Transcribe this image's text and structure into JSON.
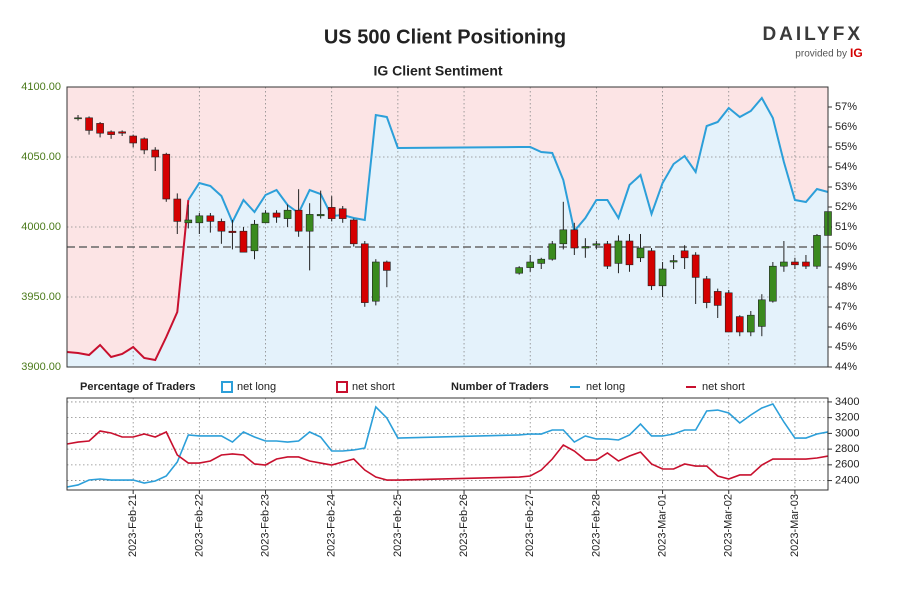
{
  "chart_data": [
    {
      "type": "candlestick",
      "title": "US 500 Client Positioning",
      "subtitle": "IG Client Sentiment",
      "logo": {
        "brand": "DAILYFX",
        "tagline": "provided by",
        "partner": "IG"
      },
      "x": [
        "2023-02-20T04:00",
        "2023-02-20T08:00",
        "2023-02-20T12:00",
        "2023-02-20T16:00",
        "2023-02-20T20:00",
        "2023-02-21T00:00",
        "2023-02-21T04:00",
        "2023-02-21T08:00",
        "2023-02-21T12:00",
        "2023-02-21T16:00",
        "2023-02-21T20:00",
        "2023-02-22T00:00",
        "2023-02-22T04:00",
        "2023-02-22T08:00",
        "2023-02-22T12:00",
        "2023-02-22T16:00",
        "2023-02-22T20:00",
        "2023-02-23T00:00",
        "2023-02-23T04:00",
        "2023-02-23T08:00",
        "2023-02-23T12:00",
        "2023-02-23T16:00",
        "2023-02-23T20:00",
        "2023-02-24T00:00",
        "2023-02-24T04:00",
        "2023-02-24T08:00",
        "2023-02-24T12:00",
        "2023-02-24T16:00",
        "2023-02-24T20:00",
        "2023-02-26T20:00",
        "2023-02-27T00:00",
        "2023-02-27T04:00",
        "2023-02-27T08:00",
        "2023-02-27T12:00",
        "2023-02-27T16:00",
        "2023-02-27T20:00",
        "2023-02-28T00:00",
        "2023-02-28T04:00",
        "2023-02-28T08:00",
        "2023-02-28T12:00",
        "2023-02-28T16:00",
        "2023-02-28T20:00",
        "2023-03-01T00:00",
        "2023-03-01T04:00",
        "2023-03-01T08:00",
        "2023-03-01T12:00",
        "2023-03-01T16:00",
        "2023-03-01T20:00",
        "2023-03-02T00:00",
        "2023-03-02T04:00",
        "2023-03-02T08:00",
        "2023-03-02T12:00",
        "2023-03-02T16:00",
        "2023-03-02T20:00",
        "2023-03-03T00:00",
        "2023-03-03T04:00",
        "2023-03-03T08:00",
        "2023-03-03T12:00"
      ],
      "open": [
        4078,
        4078,
        4074,
        4068,
        4068,
        4065,
        4063,
        4055,
        4052,
        4020,
        4003,
        4003,
        4008,
        4004,
        3997,
        3997,
        3983,
        4003,
        4010,
        4006,
        4012,
        3997,
        4008,
        4014,
        4013,
        4005,
        3988,
        3947,
        3975,
        3967,
        3971,
        3974,
        3977,
        3988,
        3998,
        3985,
        3987,
        3988,
        3974,
        3990,
        3978,
        3983,
        3958,
        3975,
        3983,
        3980,
        3963,
        3954,
        3953,
        3936,
        3925,
        3929,
        3947,
        3972,
        3975,
        3975,
        3972,
        3994
      ],
      "high": [
        4080,
        4079,
        4075,
        4069,
        4069,
        4066,
        4064,
        4057,
        4053,
        4024,
        4016,
        4010,
        4010,
        4006,
        4005,
        4000,
        4005,
        4012,
        4012,
        4016,
        4027,
        4017,
        4026,
        4022,
        4015,
        4006,
        3990,
        3977,
        3976,
        3972,
        3980,
        3978,
        3990,
        4018,
        4003,
        3992,
        3990,
        3990,
        3994,
        3995,
        3995,
        3985,
        3975,
        3980,
        3987,
        3982,
        3965,
        3956,
        3955,
        3937,
        3940,
        3952,
        3975,
        3990,
        3978,
        3980,
        3995,
        4019
      ],
      "low": [
        4076,
        4066,
        4064,
        4063,
        4065,
        4057,
        4052,
        4040,
        4018,
        3995,
        3999,
        3995,
        3996,
        3988,
        3984,
        3982,
        3977,
        4003,
        4003,
        4000,
        3993,
        3969,
        4006,
        4004,
        4003,
        3986,
        3943,
        3944,
        3957,
        3966,
        3968,
        3970,
        3976,
        3984,
        3980,
        3978,
        3984,
        3970,
        3967,
        3968,
        3975,
        3955,
        3950,
        3970,
        3970,
        3945,
        3942,
        3935,
        3925,
        3922,
        3922,
        3922,
        3946,
        3968,
        3970,
        3970,
        3970,
        3990
      ],
      "close": [
        4078,
        4069,
        4067,
        4066,
        4067,
        4060,
        4055,
        4050,
        4020,
        4004,
        4005,
        4008,
        4004,
        3997,
        3996,
        3982,
        4002,
        4010,
        4007,
        4012,
        3997,
        4009,
        4009,
        4006,
        4006,
        3988,
        3946,
        3975,
        3969,
        3971,
        3975,
        3977,
        3988,
        3998,
        3985,
        3986,
        3988,
        3972,
        3990,
        3973,
        3985,
        3958,
        3970,
        3976,
        3978,
        3964,
        3946,
        3944,
        3925,
        3925,
        3937,
        3948,
        3972,
        3975,
        3973,
        3972,
        3994,
        4011
      ],
      "up_color": "#3a8a1e",
      "down_color": "#d40000",
      "xlim": [
        "2023-02-20T00:00",
        "2023-03-03T12:00"
      ],
      "ylim": [
        3900,
        4100
      ],
      "yticks": [
        {
          "value": 3900,
          "label": "3900.00"
        },
        {
          "value": 3950,
          "label": "3950.00"
        },
        {
          "value": 4000,
          "label": "4000.00"
        },
        {
          "value": 4050,
          "label": "4050.00"
        },
        {
          "value": 4100,
          "label": "4100.00"
        }
      ],
      "y2lim": [
        44,
        58
      ],
      "y2ticks": [
        {
          "value": 44,
          "label": "44%"
        },
        {
          "value": 45,
          "label": "45%"
        },
        {
          "value": 46,
          "label": "46%"
        },
        {
          "value": 47,
          "label": "47%"
        },
        {
          "value": 48,
          "label": "48%"
        },
        {
          "value": 49,
          "label": "49%"
        },
        {
          "value": 50,
          "label": "50%"
        },
        {
          "value": 51,
          "label": "51%"
        },
        {
          "value": 52,
          "label": "52%"
        },
        {
          "value": 53,
          "label": "53%"
        },
        {
          "value": 54,
          "label": "54%"
        },
        {
          "value": 55,
          "label": "55%"
        },
        {
          "value": 56,
          "label": "56%"
        },
        {
          "value": 57,
          "label": "57%"
        }
      ],
      "grid": true,
      "sentiment": {
        "legend_title": "Percentage of Traders",
        "axis": "y2",
        "threshold": 50,
        "series": [
          {
            "name": "net long",
            "color": "#2c9fd9",
            "fill": "#e4f2fb"
          },
          {
            "name": "net short",
            "color": "#c8102e",
            "fill": "#fce4e5"
          }
        ],
        "x": [
          "2023-02-20T00:00",
          "2023-02-20T04:00",
          "2023-02-20T08:00",
          "2023-02-20T12:00",
          "2023-02-20T16:00",
          "2023-02-20T20:00",
          "2023-02-21T00:00",
          "2023-02-21T04:00",
          "2023-02-21T08:00",
          "2023-02-21T12:00",
          "2023-02-21T16:00",
          "2023-02-21T20:00",
          "2023-02-22T00:00",
          "2023-02-22T04:00",
          "2023-02-22T08:00",
          "2023-02-22T12:00",
          "2023-02-22T16:00",
          "2023-02-22T20:00",
          "2023-02-23T00:00",
          "2023-02-23T04:00",
          "2023-02-23T08:00",
          "2023-02-23T12:00",
          "2023-02-23T16:00",
          "2023-02-23T20:00",
          "2023-02-24T00:00",
          "2023-02-24T04:00",
          "2023-02-24T08:00",
          "2023-02-24T12:00",
          "2023-02-24T16:00",
          "2023-02-24T20:00",
          "2023-02-25T00:00",
          "2023-02-26T20:00",
          "2023-02-27T00:00",
          "2023-02-27T04:00",
          "2023-02-27T08:00",
          "2023-02-27T12:00",
          "2023-02-27T16:00",
          "2023-02-27T20:00",
          "2023-02-28T00:00",
          "2023-02-28T04:00",
          "2023-02-28T08:00",
          "2023-02-28T12:00",
          "2023-02-28T16:00",
          "2023-02-28T20:00",
          "2023-03-01T00:00",
          "2023-03-01T04:00",
          "2023-03-01T08:00",
          "2023-03-01T12:00",
          "2023-03-01T16:00",
          "2023-03-01T20:00",
          "2023-03-02T00:00",
          "2023-03-02T04:00",
          "2023-03-02T08:00",
          "2023-03-02T12:00",
          "2023-03-02T16:00",
          "2023-03-02T20:00",
          "2023-03-03T00:00",
          "2023-03-03T04:00",
          "2023-03-03T08:00",
          "2023-03-03T12:00"
        ],
        "values": [
          44.75,
          44.7,
          44.6,
          45.1,
          44.5,
          44.65,
          45.0,
          44.45,
          44.35,
          45.5,
          46.75,
          52.35,
          53.2,
          53.05,
          52.55,
          51.25,
          52.35,
          51.75,
          52.6,
          52.85,
          52.1,
          51.7,
          52.85,
          52.65,
          51.55,
          51.6,
          51.45,
          51.35,
          56.6,
          56.5,
          54.95,
          55.0,
          55.0,
          54.75,
          54.7,
          53.35,
          50.8,
          51.45,
          52.35,
          52.35,
          51.45,
          53.1,
          53.6,
          51.65,
          53.2,
          54.15,
          54.55,
          53.75,
          56.05,
          56.25,
          56.95,
          56.5,
          56.8,
          57.45,
          56.45,
          54.25,
          52.35,
          52.25,
          52.9,
          52.75
        ]
      }
    },
    {
      "type": "line",
      "legend_title": "Number of Traders",
      "x": [
        "2023-02-20T00:00",
        "2023-02-20T04:00",
        "2023-02-20T08:00",
        "2023-02-20T12:00",
        "2023-02-20T16:00",
        "2023-02-20T20:00",
        "2023-02-21T00:00",
        "2023-02-21T04:00",
        "2023-02-21T08:00",
        "2023-02-21T12:00",
        "2023-02-21T16:00",
        "2023-02-21T20:00",
        "2023-02-22T00:00",
        "2023-02-22T04:00",
        "2023-02-22T08:00",
        "2023-02-22T12:00",
        "2023-02-22T16:00",
        "2023-02-22T20:00",
        "2023-02-23T00:00",
        "2023-02-23T04:00",
        "2023-02-23T08:00",
        "2023-02-23T12:00",
        "2023-02-23T16:00",
        "2023-02-23T20:00",
        "2023-02-24T00:00",
        "2023-02-24T04:00",
        "2023-02-24T08:00",
        "2023-02-24T12:00",
        "2023-02-24T16:00",
        "2023-02-24T20:00",
        "2023-02-25T00:00",
        "2023-02-26T20:00",
        "2023-02-27T00:00",
        "2023-02-27T04:00",
        "2023-02-27T08:00",
        "2023-02-27T12:00",
        "2023-02-27T16:00",
        "2023-02-27T20:00",
        "2023-02-28T00:00",
        "2023-02-28T04:00",
        "2023-02-28T08:00",
        "2023-02-28T12:00",
        "2023-02-28T16:00",
        "2023-02-28T20:00",
        "2023-03-01T00:00",
        "2023-03-01T04:00",
        "2023-03-01T08:00",
        "2023-03-01T12:00",
        "2023-03-01T16:00",
        "2023-03-01T20:00",
        "2023-03-02T00:00",
        "2023-03-02T04:00",
        "2023-03-02T08:00",
        "2023-03-02T12:00",
        "2023-03-02T16:00",
        "2023-03-02T20:00",
        "2023-03-03T00:00",
        "2023-03-03T04:00",
        "2023-03-03T08:00",
        "2023-03-03T12:00"
      ],
      "series": [
        {
          "name": "net long",
          "color": "#2c9fd9",
          "values": [
            2318,
            2344,
            2407,
            2420,
            2407,
            2407,
            2407,
            2369,
            2394,
            2458,
            2636,
            2980,
            2967,
            2967,
            2967,
            2890,
            3018,
            2954,
            2903,
            2903,
            2890,
            2903,
            3018,
            2954,
            2776,
            2776,
            2789,
            2814,
            3336,
            3196,
            2941,
            2980,
            2992,
            2992,
            3043,
            3043,
            2890,
            2967,
            2929,
            2929,
            2916,
            2980,
            3119,
            2967,
            2967,
            2992,
            3043,
            3043,
            3285,
            3297,
            3259,
            3132,
            3234,
            3323,
            3374,
            3145,
            2941,
            2941,
            2992,
            3018
          ]
        },
        {
          "name": "net short",
          "color": "#c8102e",
          "values": [
            2865,
            2890,
            2903,
            3030,
            3005,
            2954,
            2954,
            2992,
            2954,
            3018,
            2725,
            2623,
            2623,
            2649,
            2725,
            2738,
            2725,
            2611,
            2598,
            2674,
            2700,
            2700,
            2649,
            2623,
            2598,
            2636,
            2674,
            2534,
            2445,
            2407,
            2407,
            2445,
            2458,
            2534,
            2674,
            2852,
            2776,
            2661,
            2661,
            2751,
            2649,
            2712,
            2763,
            2611,
            2547,
            2547,
            2611,
            2585,
            2585,
            2458,
            2420,
            2471,
            2471,
            2598,
            2674,
            2674,
            2674,
            2674,
            2687,
            2712
          ]
        }
      ],
      "xlim": [
        "2023-02-20T00:00",
        "2023-03-03T12:00"
      ],
      "xticks": [
        {
          "value": "2023-02-21T00:00",
          "label": "2023-Feb-21"
        },
        {
          "value": "2023-02-22T00:00",
          "label": "2023-Feb-22"
        },
        {
          "value": "2023-02-23T00:00",
          "label": "2023-Feb-23"
        },
        {
          "value": "2023-02-24T00:00",
          "label": "2023-Feb-24"
        },
        {
          "value": "2023-02-25T00:00",
          "label": "2023-Feb-25"
        },
        {
          "value": "2023-02-26T00:00",
          "label": "2023-Feb-26"
        },
        {
          "value": "2023-02-27T00:00",
          "label": "2023-Feb-27"
        },
        {
          "value": "2023-02-28T00:00",
          "label": "2023-Feb-28"
        },
        {
          "value": "2023-03-01T00:00",
          "label": "2023-Mar-01"
        },
        {
          "value": "2023-03-02T00:00",
          "label": "2023-Mar-02"
        },
        {
          "value": "2023-03-03T00:00",
          "label": "2023-Mar-03"
        }
      ],
      "ylim": [
        2280,
        3450
      ],
      "yticks": [
        2400,
        2600,
        2800,
        3000,
        3200,
        3400
      ],
      "grid": true
    }
  ]
}
